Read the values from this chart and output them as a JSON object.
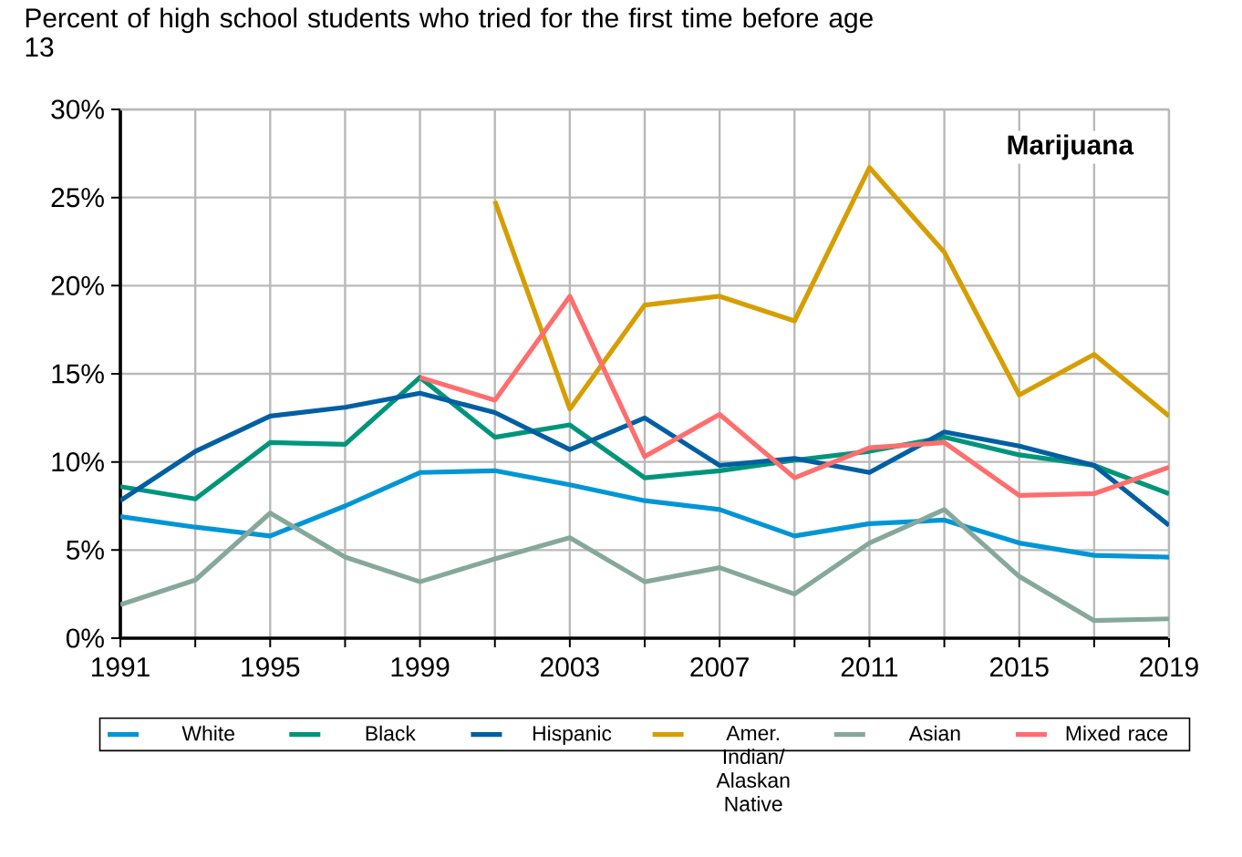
{
  "chart_data": {
    "type": "line",
    "title": "Percent of high school students who tried for the first time before age 13",
    "annotations": [
      "Marijuana"
    ],
    "x": [
      1991,
      1993,
      1995,
      1997,
      1999,
      2001,
      2003,
      2005,
      2007,
      2009,
      2011,
      2013,
      2015,
      2017,
      2019
    ],
    "series": [
      {
        "name": "White",
        "color": "#0096d6",
        "values": [
          6.9,
          6.3,
          5.8,
          7.5,
          9.4,
          9.5,
          8.7,
          7.8,
          7.3,
          5.8,
          6.5,
          6.7,
          5.4,
          4.7,
          4.6
        ]
      },
      {
        "name": "Black",
        "color": "#00957a",
        "values": [
          8.6,
          7.9,
          11.1,
          11.0,
          14.8,
          11.4,
          12.1,
          9.1,
          9.5,
          10.1,
          10.6,
          11.4,
          10.4,
          9.8,
          8.2
        ]
      },
      {
        "name": "Hispanic",
        "color": "#005fa3",
        "values": [
          7.8,
          10.6,
          12.6,
          13.1,
          13.9,
          12.8,
          10.7,
          12.5,
          9.8,
          10.2,
          9.4,
          11.7,
          10.9,
          9.8,
          6.4
        ]
      },
      {
        "name": "Amer. Indian/ Alaskan Native",
        "color": "#d69e00",
        "values": [
          null,
          null,
          null,
          null,
          null,
          24.8,
          13.0,
          18.9,
          19.4,
          18.0,
          26.7,
          21.9,
          13.8,
          16.1,
          12.6
        ]
      },
      {
        "name": "Asian",
        "color": "#86a89a",
        "values": [
          1.9,
          3.3,
          7.1,
          4.6,
          3.2,
          4.5,
          5.7,
          3.2,
          4.0,
          2.5,
          5.4,
          7.3,
          3.5,
          1.0,
          1.1
        ]
      },
      {
        "name": "Mixed race",
        "color": "#ff6e6e",
        "values": [
          null,
          null,
          null,
          null,
          14.8,
          13.5,
          19.4,
          10.3,
          12.7,
          9.1,
          10.8,
          11.1,
          8.1,
          8.2,
          9.7
        ]
      }
    ],
    "xlim": [
      1991,
      2019
    ],
    "xticks": [
      1991,
      {
        "value": 1993,
        "label": null
      },
      1995,
      {
        "value": 1997,
        "label": null
      },
      1999,
      {
        "value": 2001,
        "label": null
      },
      2003,
      {
        "value": 2005,
        "label": null
      },
      2007,
      {
        "value": 2009,
        "label": null
      },
      2011,
      {
        "value": 2013,
        "label": null
      },
      2015,
      {
        "value": 2017,
        "label": null
      },
      2019
    ],
    "ylim": [
      0,
      30
    ],
    "yticks": [
      {
        "value": 0,
        "label": "0%"
      },
      {
        "value": 5,
        "label": "5%"
      },
      {
        "value": 10,
        "label": "10%"
      },
      {
        "value": 15,
        "label": "15%"
      },
      {
        "value": 20,
        "label": "20%"
      },
      {
        "value": 25,
        "label": "25%"
      },
      {
        "value": 30,
        "label": "30%"
      }
    ],
    "grid": true,
    "legend": "bottom",
    "marker": "none",
    "line_style": "solid"
  }
}
